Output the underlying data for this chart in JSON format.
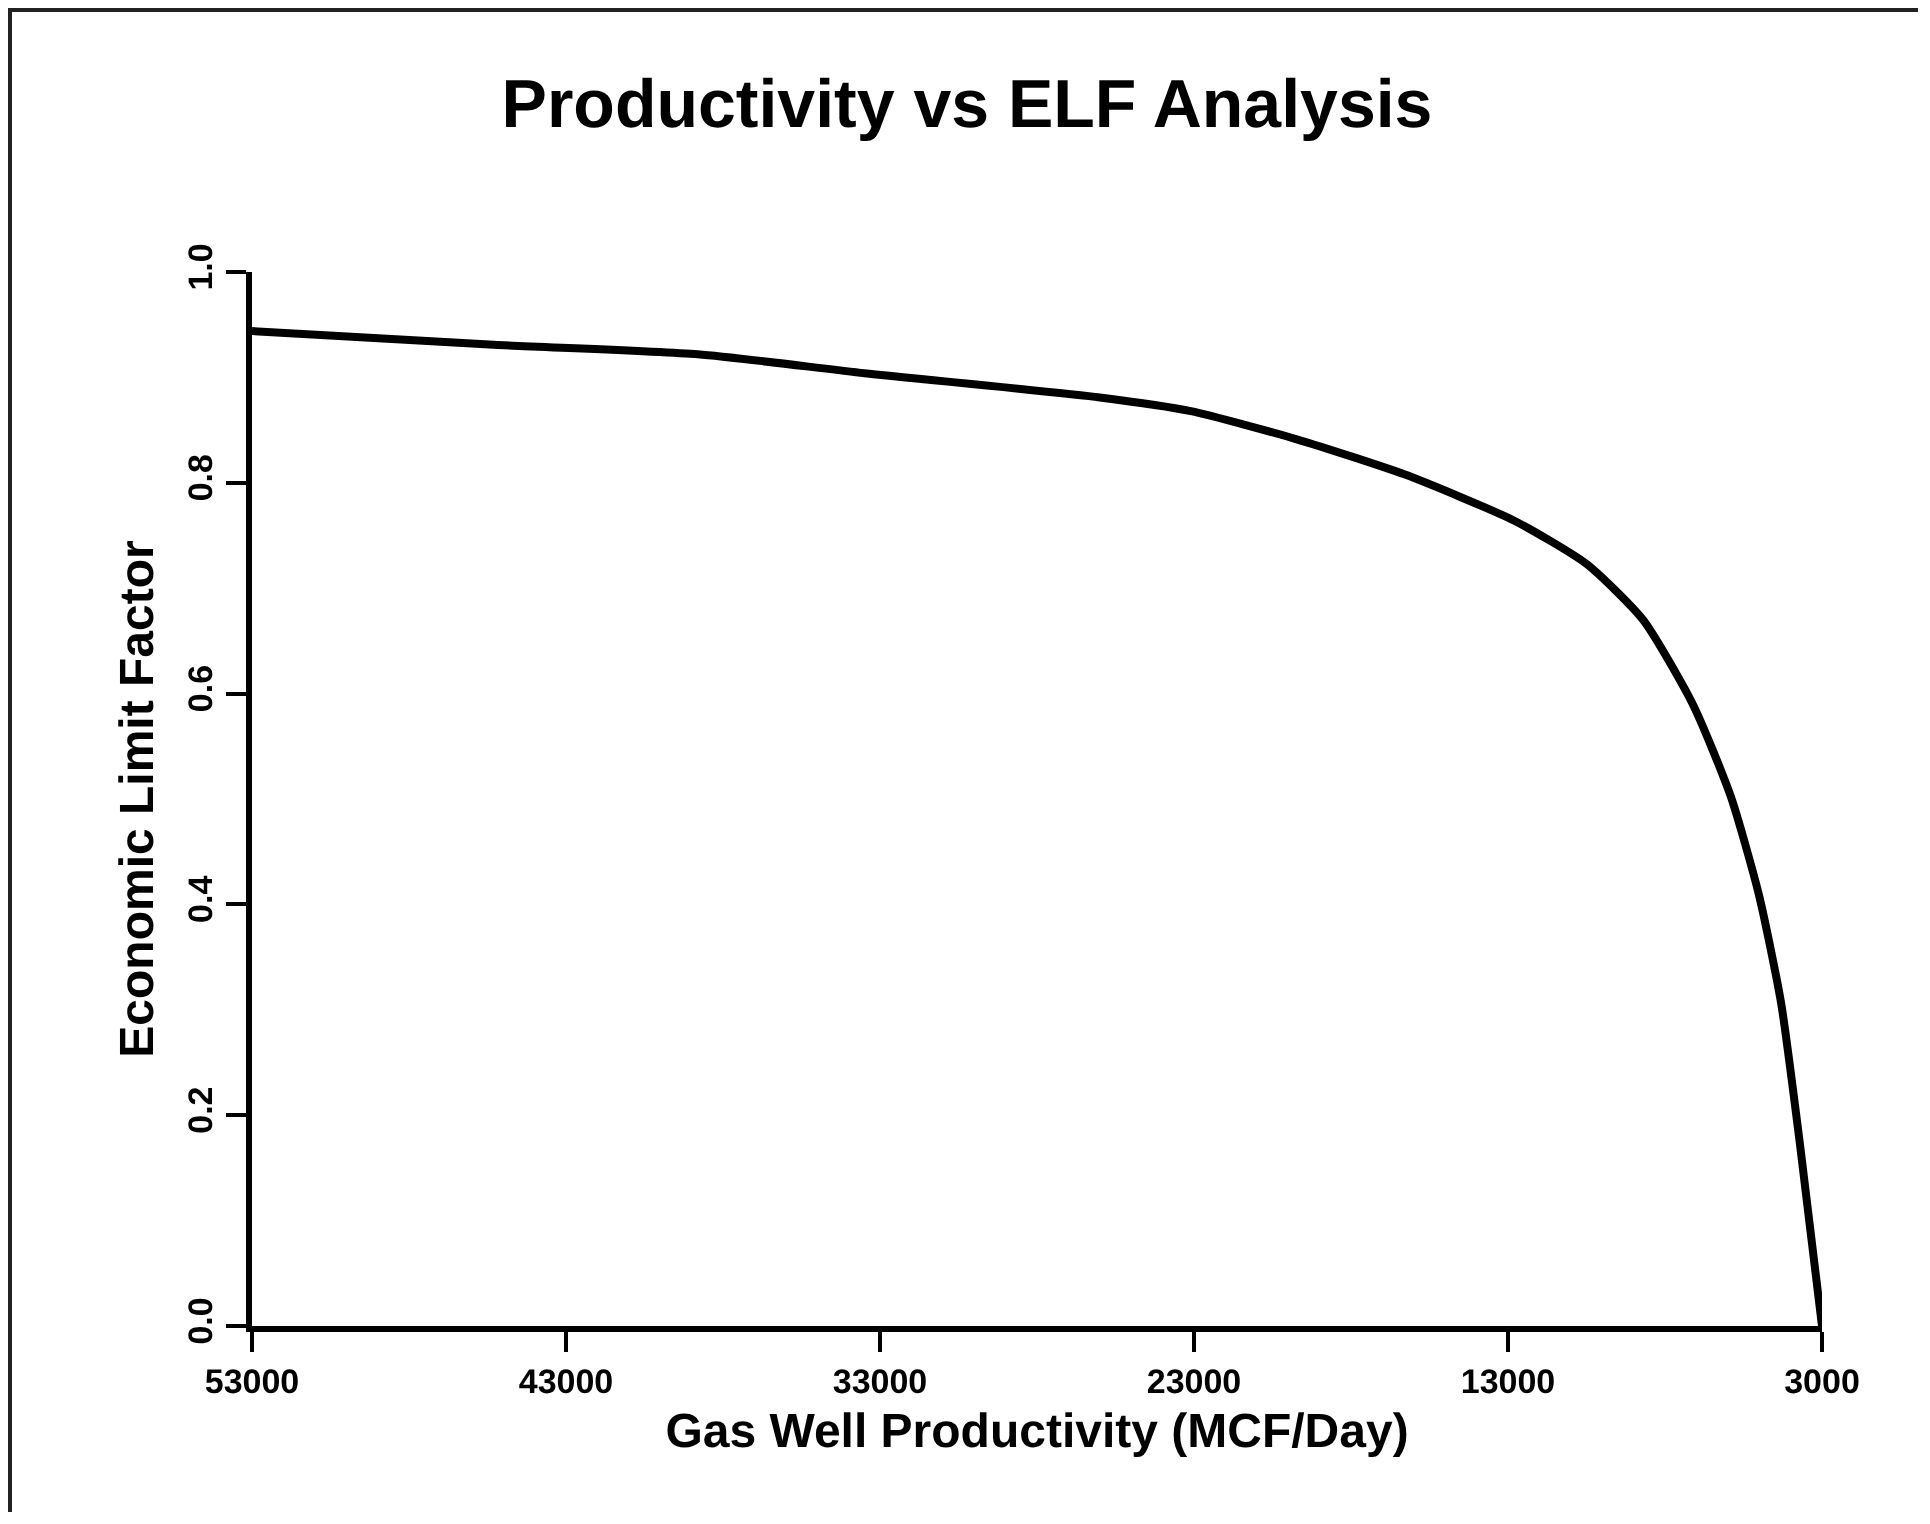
{
  "chart_data": {
    "type": "line",
    "title": "Productivity vs ELF Analysis",
    "xlabel": "Gas Well Productivity (MCF/Day)",
    "ylabel": "Economic Limit Factor",
    "x": [
      53000,
      45300,
      38800,
      33500,
      26000,
      23100,
      19700,
      16300,
      12800,
      10500,
      8700,
      7100,
      5900,
      5000,
      4300,
      3700,
      3000
    ],
    "series": [
      {
        "color": "#000000",
        "values": [
          0.944,
          0.931,
          0.922,
          0.904,
          0.881,
          0.868,
          0.841,
          0.808,
          0.764,
          0.723,
          0.67,
          0.589,
          0.502,
          0.408,
          0.306,
          0.172,
          0.0
        ]
      }
    ],
    "xlim": [
      53000,
      3000
    ],
    "xticks": [
      53000,
      43000,
      33000,
      23000,
      13000,
      3000
    ],
    "ylim": [
      0,
      1
    ],
    "yticks": [
      {
        "value": 0,
        "label": "0.0"
      },
      0.2,
      0.4,
      {
        "value": 0.6,
        "label": "0.6"
      },
      0.8,
      {
        "value": 1,
        "label": "1.0"
      }
    ],
    "grid": false,
    "marker": "none",
    "line_style": "solid"
  }
}
